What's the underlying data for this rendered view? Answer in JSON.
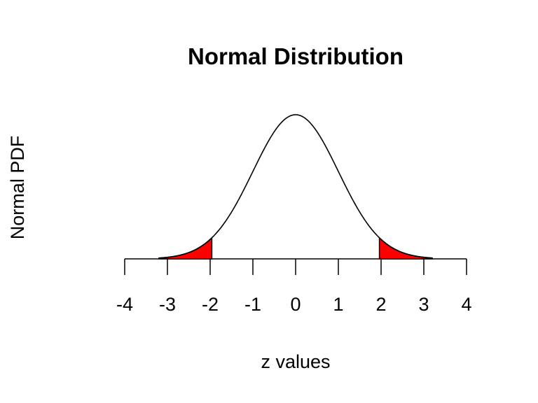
{
  "chart_data": {
    "type": "area",
    "title": "Normal Distribution",
    "xlabel": "z values",
    "ylabel": "Normal PDF",
    "xlim": [
      -4,
      4
    ],
    "ylim": [
      0,
      0.3989
    ],
    "x_ticks": [
      -4,
      -3,
      -2,
      -1,
      0,
      1,
      2,
      3,
      4
    ],
    "x_tick_labels": [
      "-4",
      "-3",
      "-2",
      "-1",
      "0",
      "1",
      "2",
      "3",
      "4"
    ],
    "y_axis_drawn": false,
    "grid": false,
    "legend": "none",
    "series": [
      {
        "type": "line",
        "function": "standard normal pdf",
        "mean": 0,
        "sd": 1,
        "x_range": [
          -3.2,
          3.2
        ],
        "color": "#000000"
      }
    ],
    "shaded_regions": [
      {
        "from": -3.2,
        "to": -1.96,
        "fill": "#ff0000"
      },
      {
        "from": 1.96,
        "to": 3.2,
        "fill": "#ff0000"
      }
    ]
  }
}
